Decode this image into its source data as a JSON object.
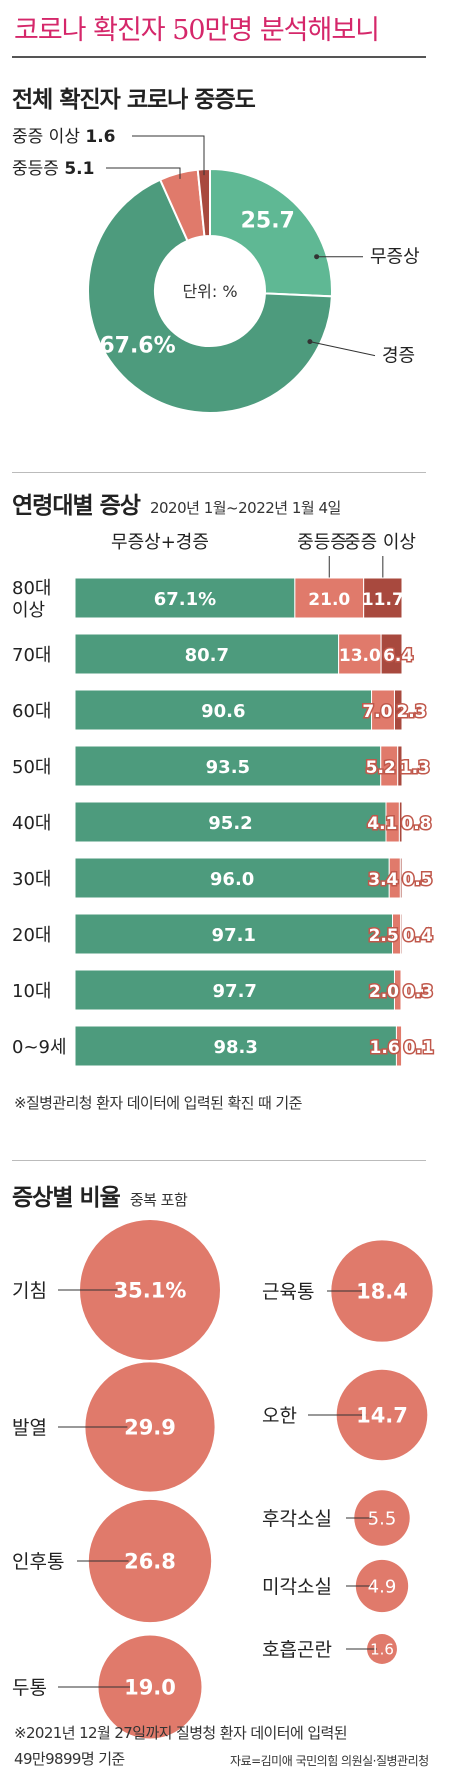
{
  "header": {
    "title": "코로나 확진자 50만명 분석해보니"
  },
  "severity": {
    "title": "전체 확진자 코로나 중증도",
    "unit_label": "단위: %",
    "chart_data": {
      "type": "pie",
      "unit": "%",
      "slices": [
        {
          "label": "무증상",
          "value": 25.7,
          "color": "#5fb894"
        },
        {
          "label": "경증",
          "value": 67.6,
          "color": "#4d9b7d"
        },
        {
          "label": "중등증",
          "value": 5.1,
          "color": "#e07a6b"
        },
        {
          "label": "중증 이상",
          "value": 1.6,
          "color": "#a8493e"
        }
      ]
    }
  },
  "age": {
    "title": "연령대별 증상",
    "subtitle": "2020년 1월~2022년 1월 4일",
    "chart_data": {
      "type": "bar",
      "stacked": true,
      "orientation": "horizontal",
      "categories": [
        "80대 이상",
        "70대",
        "60대",
        "50대",
        "40대",
        "30대",
        "20대",
        "10대",
        "0~9세"
      ],
      "series": [
        {
          "name": "무증상+경증",
          "color": "#4d9b7d",
          "values": [
            67.1,
            80.7,
            90.6,
            93.5,
            95.2,
            96.0,
            97.1,
            97.7,
            98.3
          ]
        },
        {
          "name": "중등증",
          "color": "#e07a6b",
          "values": [
            21.0,
            13.0,
            7.0,
            5.2,
            4.1,
            3.4,
            2.5,
            2.0,
            1.6
          ]
        },
        {
          "name": "중증 이상",
          "color": "#a8493e",
          "values": [
            11.7,
            6.4,
            2.3,
            1.3,
            0.8,
            0.5,
            0.4,
            0.3,
            0.1
          ]
        }
      ],
      "value_labels": [
        [
          "67.1%",
          "21.0",
          "11.7"
        ],
        [
          "80.7",
          "13.0",
          "6.4"
        ],
        [
          "90.6",
          "7.0",
          "2.3"
        ],
        [
          "93.5",
          "5.2",
          "1.3"
        ],
        [
          "95.2",
          "4.1",
          "0.8"
        ],
        [
          "96.0",
          "3.4",
          "0.5"
        ],
        [
          "97.1",
          "2.5",
          "0.4"
        ],
        [
          "97.7",
          "2.0",
          "0.3"
        ],
        [
          "98.3",
          "1.6",
          "0.1"
        ]
      ]
    },
    "note": "※질병관리청 환자 데이터에 입력된 확진 때 기준"
  },
  "symptoms": {
    "title": "증상별 비율",
    "subtitle": "중복 포함",
    "chart_data": {
      "type": "bubble",
      "color": "#e07a6b",
      "items": [
        {
          "label": "기침",
          "value": 35.1,
          "display": "35.1%"
        },
        {
          "label": "발열",
          "value": 29.9,
          "display": "29.9"
        },
        {
          "label": "인후통",
          "value": 26.8,
          "display": "26.8"
        },
        {
          "label": "두통",
          "value": 19.0,
          "display": "19.0"
        },
        {
          "label": "근육통",
          "value": 18.4,
          "display": "18.4"
        },
        {
          "label": "오한",
          "value": 14.7,
          "display": "14.7"
        },
        {
          "label": "후각소실",
          "value": 5.5,
          "display": "5.5"
        },
        {
          "label": "미각소실",
          "value": 4.9,
          "display": "4.9"
        },
        {
          "label": "호흡곤란",
          "value": 1.6,
          "display": "1.6"
        }
      ]
    },
    "note_line1": "※2021년 12월 27일까지 질병청 환자 데이터에 입력된",
    "note_line2": "49만9899명 기준",
    "source": "자료=김미애 국민의힘 의원실·질병관리청"
  }
}
